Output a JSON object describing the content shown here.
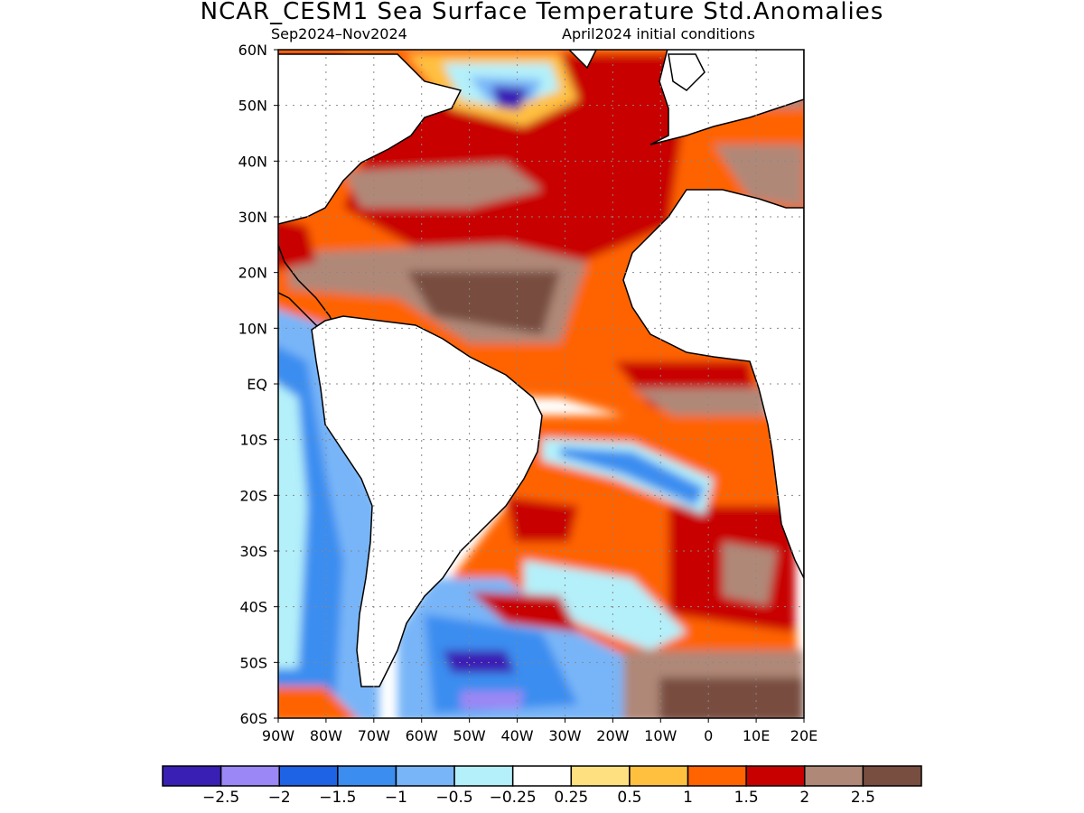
{
  "title": "NCAR_CESM1 Sea Surface Temperature Std.Anomalies",
  "subtitle_left": "Sep2024–Nov2024",
  "subtitle_right": "April2024 initial conditions",
  "map": {
    "lat_labels": [
      "60N",
      "50N",
      "40N",
      "30N",
      "20N",
      "10N",
      "EQ",
      "10S",
      "20S",
      "30S",
      "40S",
      "50S",
      "60S"
    ],
    "lon_labels": [
      "90W",
      "80W",
      "70W",
      "60W",
      "50W",
      "40W",
      "30W",
      "20W",
      "10W",
      "0",
      "10E",
      "20E"
    ],
    "lat_range": [
      -60,
      60
    ],
    "lon_range": [
      -90,
      20
    ],
    "grid": "dotted"
  },
  "legend": {
    "colors": [
      "#3a1fb5",
      "#9b87f5",
      "#1e62e6",
      "#3b8df0",
      "#78b5f8",
      "#b4f0fa",
      "#ffffff",
      "#ffe080",
      "#ffc040",
      "#ff6400",
      "#c80000",
      "#b08878",
      "#784e40"
    ],
    "labels": [
      "−2.5",
      "−2",
      "−1.5",
      "−1",
      "−0.5",
      "−0.25",
      "0.25",
      "0.5",
      "1",
      "1.5",
      "2",
      "2.5"
    ]
  }
}
